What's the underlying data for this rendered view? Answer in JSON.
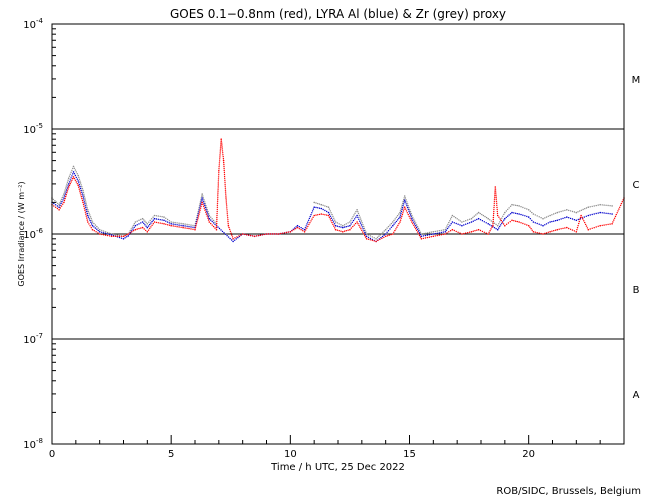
{
  "chart_data": {
    "type": "scatter",
    "title": "GOES 0.1−0.8nm (red), LYRA Al (blue) & Zr (grey) proxy",
    "xlabel": "Time / h UTC, 25 Dec 2022",
    "ylabel": "GOES Irradiance / (W m⁻²)",
    "xlim": [
      0,
      24
    ],
    "ylim": [
      1e-08,
      0.0001
    ],
    "yscale": "log",
    "xticks": [
      0,
      5,
      10,
      15,
      20
    ],
    "ytick_mantissa": "10",
    "ytick_exponents": [
      "-8",
      "-7",
      "-6",
      "-5",
      "-4"
    ],
    "flare_classes": [
      {
        "label": "A",
        "y": 3e-08
      },
      {
        "label": "B",
        "y": 3e-07
      },
      {
        "label": "C",
        "y": 3e-06
      },
      {
        "label": "M",
        "y": 3e-05
      }
    ],
    "class_lines": [
      1e-07,
      1e-06,
      1e-05
    ],
    "credit": "ROB/SIDC, Brussels, Belgium",
    "series": [
      {
        "name": "Zr",
        "color": "#8c8c8c",
        "x": [
          0.0,
          0.3,
          0.5,
          0.7,
          0.9,
          1.1,
          1.3,
          1.5,
          1.7,
          2.0,
          2.5,
          3.0,
          3.2,
          3.5,
          3.8,
          4.0,
          4.3,
          4.7,
          5.0,
          5.5,
          6.0,
          6.3,
          6.6,
          6.9,
          11.0,
          11.3,
          11.6,
          11.9,
          12.2,
          12.5,
          12.8,
          13.2,
          13.6,
          14.0,
          14.3,
          14.6,
          14.8,
          15.1,
          15.5,
          16.0,
          16.5,
          16.8,
          17.2,
          17.6,
          17.9,
          18.3,
          18.7,
          19.0,
          19.3,
          19.6,
          20.0,
          20.2,
          20.6,
          20.9,
          21.2,
          21.6,
          22.0,
          22.5,
          23.0,
          23.5
        ],
        "y": [
          2.2e-06,
          1.9e-06,
          2.4e-06,
          3.4e-06,
          4.4e-06,
          3.6e-06,
          2.6e-06,
          1.7e-06,
          1.3e-06,
          1.1e-06,
          1e-06,
          9.5e-07,
          1e-06,
          1.3e-06,
          1.4e-06,
          1.25e-06,
          1.5e-06,
          1.45e-06,
          1.3e-06,
          1.25e-06,
          1.2e-06,
          2.4e-06,
          1.5e-06,
          1.25e-06,
          2e-06,
          1.9e-06,
          1.8e-06,
          1.3e-06,
          1.2e-06,
          1.3e-06,
          1.7e-06,
          1e-06,
          9e-07,
          1.1e-06,
          1.3e-06,
          1.6e-06,
          2.3e-06,
          1.5e-06,
          1e-06,
          1.05e-06,
          1.1e-06,
          1.5e-06,
          1.3e-06,
          1.4e-06,
          1.6e-06,
          1.4e-06,
          1.2e-06,
          1.6e-06,
          1.9e-06,
          1.85e-06,
          1.7e-06,
          1.55e-06,
          1.4e-06,
          1.5e-06,
          1.6e-06,
          1.7e-06,
          1.6e-06,
          1.8e-06,
          1.9e-06,
          1.85e-06
        ]
      },
      {
        "name": "Al",
        "color": "#0000cc",
        "x": [
          0.0,
          0.3,
          0.5,
          0.7,
          0.9,
          1.1,
          1.3,
          1.5,
          1.7,
          2.0,
          2.5,
          3.0,
          3.2,
          3.5,
          3.8,
          4.0,
          4.3,
          4.7,
          5.0,
          5.5,
          6.0,
          6.3,
          6.6,
          6.9,
          7.6,
          8.0,
          8.5,
          9.0,
          9.5,
          10.0,
          10.3,
          10.6,
          11.0,
          11.3,
          11.6,
          11.9,
          12.2,
          12.5,
          12.8,
          13.2,
          13.6,
          14.0,
          14.3,
          14.6,
          14.8,
          15.1,
          15.5,
          16.0,
          16.5,
          16.8,
          17.2,
          17.6,
          17.9,
          18.3,
          18.7,
          19.0,
          19.3,
          19.6,
          20.0,
          20.2,
          20.6,
          20.9,
          21.2,
          21.6,
          22.0,
          22.5,
          23.0,
          23.5
        ],
        "y": [
          2e-06,
          1.8e-06,
          2.2e-06,
          3e-06,
          3.9e-06,
          3.2e-06,
          2.3e-06,
          1.5e-06,
          1.2e-06,
          1.05e-06,
          9.8e-07,
          9e-07,
          9.6e-07,
          1.2e-06,
          1.3e-06,
          1.15e-06,
          1.4e-06,
          1.35e-06,
          1.25e-06,
          1.2e-06,
          1.15e-06,
          2.2e-06,
          1.4e-06,
          1.2e-06,
          8.5e-07,
          1e-06,
          9.5e-07,
          1e-06,
          1e-06,
          1.05e-06,
          1.2e-06,
          1.1e-06,
          1.8e-06,
          1.75e-06,
          1.6e-06,
          1.2e-06,
          1.15e-06,
          1.2e-06,
          1.5e-06,
          9.5e-07,
          8.5e-07,
          1e-06,
          1.2e-06,
          1.45e-06,
          2.1e-06,
          1.4e-06,
          9.5e-07,
          1e-06,
          1.05e-06,
          1.3e-06,
          1.2e-06,
          1.3e-06,
          1.4e-06,
          1.25e-06,
          1.1e-06,
          1.4e-06,
          1.6e-06,
          1.55e-06,
          1.45e-06,
          1.3e-06,
          1.2e-06,
          1.3e-06,
          1.35e-06,
          1.45e-06,
          1.35e-06,
          1.5e-06,
          1.6e-06,
          1.55e-06
        ]
      },
      {
        "name": "GOES 0.1−0.8nm",
        "color": "#ff0000",
        "x": [
          0.0,
          0.3,
          0.5,
          0.7,
          0.9,
          1.1,
          1.3,
          1.5,
          1.7,
          2.0,
          2.5,
          3.0,
          3.2,
          3.5,
          3.8,
          4.0,
          4.3,
          4.7,
          5.0,
          5.5,
          6.0,
          6.3,
          6.6,
          6.9,
          7.0,
          7.1,
          7.2,
          7.3,
          7.4,
          7.6,
          8.0,
          8.5,
          9.0,
          9.5,
          10.0,
          10.3,
          10.6,
          11.0,
          11.3,
          11.6,
          11.9,
          12.2,
          12.5,
          12.8,
          13.2,
          13.6,
          14.0,
          14.3,
          14.6,
          14.8,
          15.1,
          15.5,
          16.0,
          16.5,
          16.8,
          17.2,
          17.6,
          17.9,
          18.3,
          18.5,
          18.6,
          18.7,
          19.0,
          19.3,
          19.6,
          20.0,
          20.2,
          20.6,
          20.9,
          21.2,
          21.6,
          22.0,
          22.2,
          22.5,
          23.0,
          23.5,
          24.0
        ],
        "y": [
          1.9e-06,
          1.7e-06,
          2e-06,
          2.8e-06,
          3.5e-06,
          2.9e-06,
          2e-06,
          1.3e-06,
          1.1e-06,
          1e-06,
          9.5e-07,
          9.5e-07,
          1e-06,
          1.1e-06,
          1.15e-06,
          1.05e-06,
          1.3e-06,
          1.25e-06,
          1.2e-06,
          1.15e-06,
          1.1e-06,
          2e-06,
          1.3e-06,
          1.1e-06,
          4e-06,
          8e-06,
          5e-06,
          2.2e-06,
          1.2e-06,
          9e-07,
          1e-06,
          9.5e-07,
          1e-06,
          1e-06,
          1.05e-06,
          1.15e-06,
          1.05e-06,
          1.5e-06,
          1.55e-06,
          1.5e-06,
          1.1e-06,
          1.05e-06,
          1.1e-06,
          1.3e-06,
          9e-07,
          8.5e-07,
          9.5e-07,
          1e-06,
          1.3e-06,
          1.8e-06,
          1.3e-06,
          9e-07,
          9.5e-07,
          1e-06,
          1.1e-06,
          1e-06,
          1.05e-06,
          1.1e-06,
          1e-06,
          1.2e-06,
          2.8e-06,
          1.5e-06,
          1.2e-06,
          1.35e-06,
          1.3e-06,
          1.2e-06,
          1.05e-06,
          1e-06,
          1.05e-06,
          1.1e-06,
          1.15e-06,
          1.05e-06,
          1.5e-06,
          1.1e-06,
          1.2e-06,
          1.25e-06,
          2.2e-06
        ]
      }
    ]
  }
}
